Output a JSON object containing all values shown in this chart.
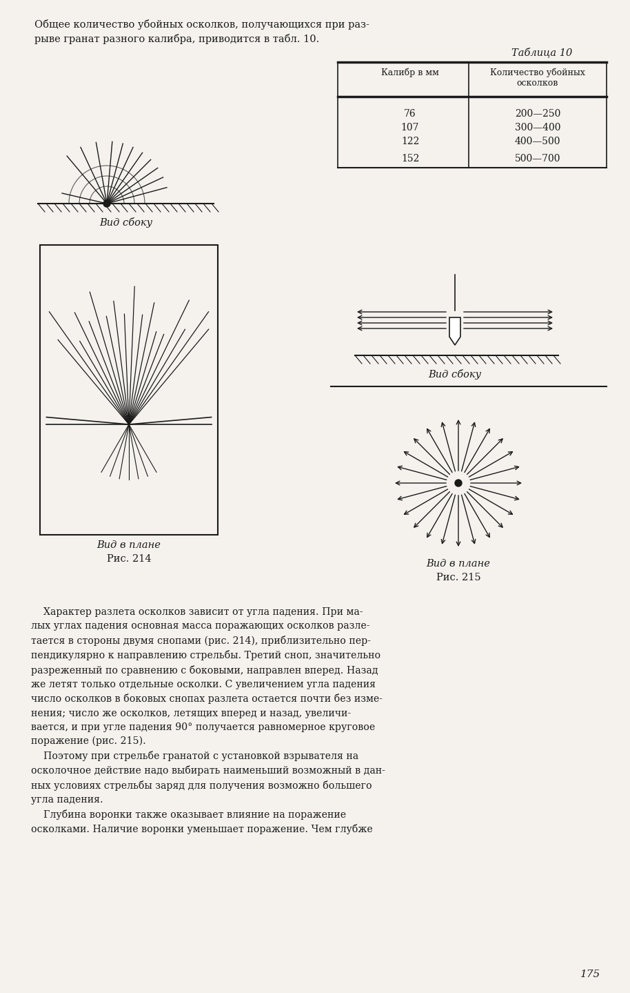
{
  "bg_color": "#f5f2ee",
  "text_color": "#1a1a1a",
  "page_text": {
    "intro": "Общее количество убойных осколков, получающихся при раз-\nрыве гранат разного калибра, приводится в табл. 10.",
    "table_title": "Таблица 10",
    "col1_header": "Калибр в мм",
    "col2_header": "Количество убойных\nосколков",
    "table_data": [
      [
        "76",
        "200—250"
      ],
      [
        "107",
        "300—400"
      ],
      [
        "122",
        "400—500"
      ],
      [
        "152",
        "500—700"
      ]
    ],
    "fig214_side_label": "Вид сбоку",
    "fig214_plan_label": "Вид в плане",
    "fig214_caption": "Рис. 214",
    "fig215_side_label": "Вид сбоку",
    "fig215_plan_label": "Вид в плане",
    "fig215_caption": "Рис. 215",
    "body_text": "    Характер разлета осколков зависит от угла падения. При ма-\nлых углах падения основная масса поражающих осколков разле-\nтается в стороны двумя снопами (рис. 214), приблизительно пер-\nпендикулярно к направлению стрельбы. Третий сноп, значительно\nразреженный по сравнению с боковыми, направлен вперед. Назад\nже летят только отдельные осколки. С увеличением угла падения\nчисло осколков в боковых снопах разлета остается почти без изме-\nнения; число же осколков, летящих вперед и назад, увеличи-\nвается, и при угле падения 90° получается равномерное круговое\nпоражение (рис. 215).\n    Поэтому при стрельбе гранатой с установкой взрывателя на\nосколочное действие надо выбирать наименьший возможный в дан-\nных условиях стрельбы заряд для получения возможно большего\nугла падения.\n    Глубина воронки также оказывает влияние на поражение\nосколками. Наличие воронки уменьшает поражение. Чем глубже",
    "page_number": "175"
  }
}
